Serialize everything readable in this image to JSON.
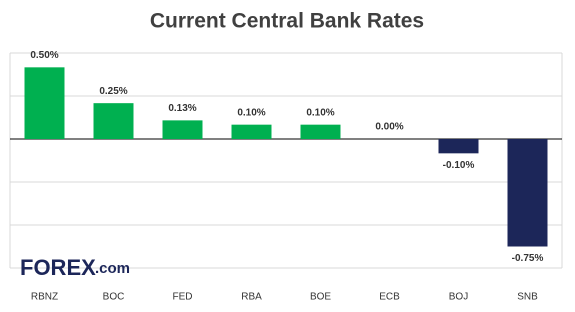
{
  "chart_data": {
    "type": "bar",
    "title": "Current Central Bank Rates",
    "categories": [
      "RBNZ",
      "BOC",
      "FED",
      "RBA",
      "BOE",
      "ECB",
      "BOJ",
      "SNB"
    ],
    "values": [
      0.5,
      0.25,
      0.13,
      0.1,
      0.1,
      0,
      -0.1,
      -0.75
    ],
    "value_labels": [
      "0.50%",
      "0.25%",
      "0.13%",
      "0.10%",
      "0.10%",
      "0.00%",
      "-0.10%",
      "-0.75%"
    ],
    "positive_color": "#00b050",
    "negative_color": "#1c2659",
    "ylim": [
      -0.9,
      0.6
    ],
    "yticks": [
      -0.9,
      -0.6,
      -0.3,
      0,
      0.3,
      0.6
    ],
    "grid": true
  },
  "logo": {
    "brand": "FOREX",
    "suffix": ".com"
  }
}
